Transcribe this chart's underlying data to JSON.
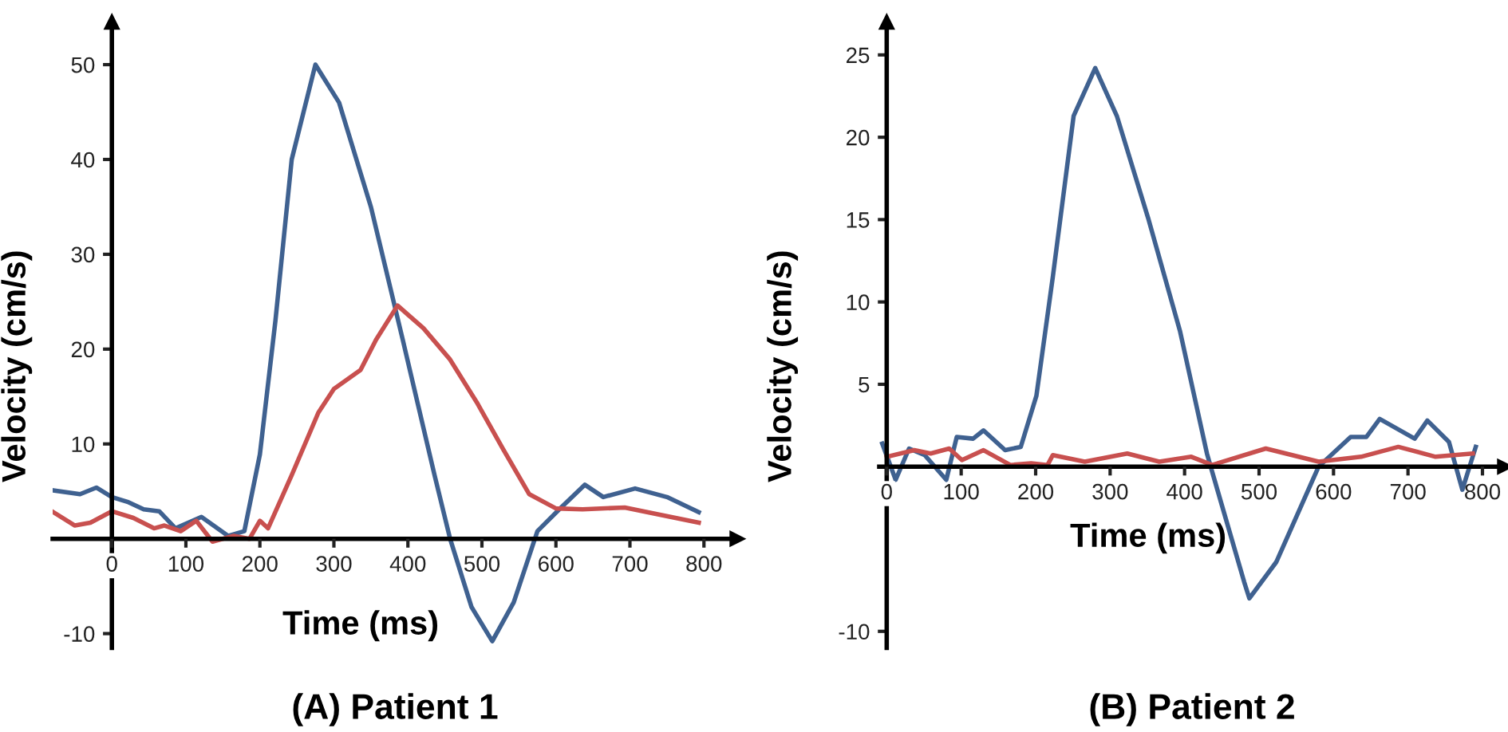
{
  "chart_data": [
    {
      "type": "line",
      "title": "(A) Patient 1",
      "xlabel": "Time (ms)",
      "ylabel": "Velocity (cm/s)",
      "xlim": [
        -80,
        845
      ],
      "ylim": [
        -11.5,
        54.5
      ],
      "xticks": [
        0,
        100,
        200,
        300,
        400,
        500,
        600,
        700,
        800
      ],
      "yticks": [
        -10,
        {
          "value": 0,
          "label": null
        },
        10,
        20,
        30,
        40,
        50
      ],
      "grid": false,
      "legend": false,
      "line_style": "solid",
      "marker": "none",
      "series": [
        {
          "color": "#3f6190",
          "x": [
            -79,
            -43,
            -21,
            0,
            21,
            43,
            64,
            86,
            121,
            157,
            179,
            200,
            221,
            243,
            275,
            307,
            350,
            393,
            436,
            457,
            486,
            514,
            543,
            575,
            607,
            639,
            664,
            707,
            750,
            793
          ],
          "values": [
            5.1,
            4.7,
            5.4,
            4.4,
            3.9,
            3.1,
            2.9,
            1.1,
            2.3,
            0.3,
            0.8,
            8.9,
            23,
            40,
            50,
            46,
            35,
            21,
            6.7,
            0,
            -7.2,
            -10.8,
            -6.7,
            0.8,
            3.3,
            5.7,
            4.4,
            5.3,
            4.4,
            2.8
          ]
        },
        {
          "color": "#c8504f",
          "x": [
            -79,
            -50,
            -29,
            0,
            29,
            57,
            71,
            93,
            114,
            136,
            164,
            186,
            200,
            211,
            243,
            279,
            300,
            336,
            357,
            386,
            421,
            457,
            493,
            529,
            564,
            600,
            636,
            693,
            743,
            793
          ],
          "values": [
            2.8,
            1.4,
            1.7,
            2.9,
            2.2,
            1.1,
            1.4,
            0.8,
            1.9,
            -0.3,
            0.3,
            0,
            1.9,
            1.1,
            6.7,
            13.3,
            15.8,
            17.8,
            21,
            24.6,
            22.2,
            18.9,
            14.4,
            9.4,
            4.7,
            3.2,
            3.1,
            3.3,
            2.5,
            1.7
          ]
        }
      ]
    },
    {
      "type": "line",
      "title": "(B) Patient 2",
      "xlabel": "Time (ms)",
      "ylabel": "Velocity (cm/s)",
      "xlim": [
        -10,
        830
      ],
      "ylim": [
        -11,
        27
      ],
      "xticks": [
        0,
        100,
        200,
        300,
        400,
        500,
        600,
        700,
        800
      ],
      "yticks": [
        -10,
        {
          "value": 0,
          "label": null
        },
        5,
        10,
        15,
        20,
        25
      ],
      "grid": false,
      "legend": false,
      "line_style": "solid",
      "marker": "none",
      "series": [
        {
          "color": "#3f6190",
          "x": [
            -6,
            12,
            30,
            51,
            80,
            94,
            116,
            130,
            159,
            180,
            201,
            223,
            251,
            280,
            309,
            351,
            394,
            430,
            444,
            480,
            487,
            523,
            580,
            623,
            644,
            662,
            709,
            726,
            755,
            773,
            791
          ],
          "values": [
            1.4,
            -0.8,
            1.1,
            0.7,
            -0.8,
            1.8,
            1.7,
            2.2,
            1.0,
            1.2,
            4.3,
            11.5,
            21.3,
            24.2,
            21.3,
            15.1,
            8.2,
            0.8,
            -1.4,
            -7,
            -8,
            -5.8,
            0,
            1.8,
            1.8,
            2.9,
            1.7,
            2.8,
            1.5,
            -1.4,
            1.2
          ]
        },
        {
          "color": "#c8504f",
          "x": [
            0,
            37,
            59,
            84,
            101,
            130,
            166,
            194,
            216,
            223,
            266,
            323,
            366,
            409,
            437,
            509,
            580,
            637,
            687,
            737,
            787
          ],
          "values": [
            0.6,
            1.0,
            0.8,
            1.1,
            0.4,
            1.0,
            0.1,
            0.2,
            0.1,
            0.7,
            0.3,
            0.8,
            0.3,
            0.6,
            0.1,
            1.1,
            0.3,
            0.6,
            1.2,
            0.6,
            0.8
          ]
        }
      ]
    }
  ]
}
